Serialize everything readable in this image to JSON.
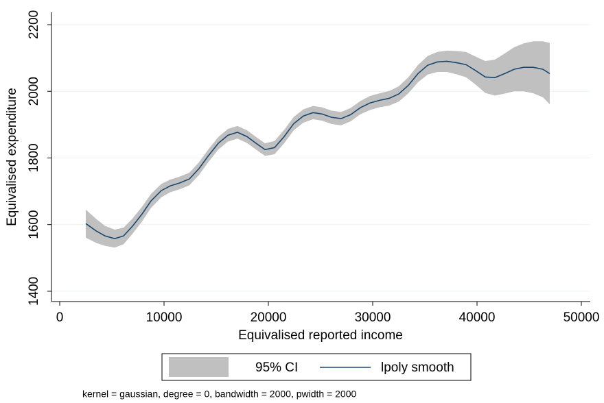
{
  "chart_data": {
    "type": "line",
    "xlabel": "Equivalised reported income",
    "ylabel": "Equivalised expenditure",
    "note": "kernel = gaussian, degree = 0, bandwidth = 2000, pwidth = 2000",
    "x": [
      2500,
      3490,
      4350,
      5270,
      6120,
      6970,
      7900,
      8750,
      9740,
      10590,
      11510,
      12430,
      13350,
      14210,
      15200,
      16120,
      17040,
      17960,
      18820,
      19680,
      20590,
      21510,
      22430,
      23360,
      24280,
      25130,
      26050,
      26970,
      27890,
      28820,
      29740,
      30660,
      31580,
      32500,
      33420,
      34340,
      35260,
      36180,
      37110,
      38030,
      38950,
      39870,
      40790,
      41710,
      42630,
      43550,
      44470,
      45390,
      46320,
      46970
    ],
    "series": [
      {
        "name": "95% CI",
        "color": "#c0c0c0",
        "lower": [
          1561,
          1545,
          1536,
          1531,
          1541,
          1572,
          1610,
          1650,
          1682,
          1697,
          1706,
          1718,
          1749,
          1786,
          1825,
          1849,
          1858,
          1845,
          1825,
          1806,
          1811,
          1844,
          1883,
          1906,
          1916,
          1912,
          1902,
          1898,
          1910,
          1931,
          1944,
          1952,
          1957,
          1969,
          1994,
          2027,
          2050,
          2058,
          2058,
          2051,
          2042,
          2020,
          1995,
          1987,
          1993,
          2000,
          2000,
          1994,
          1982,
          1961
        ],
        "upper": [
          1645,
          1617,
          1596,
          1585,
          1591,
          1618,
          1654,
          1692,
          1722,
          1735,
          1744,
          1756,
          1787,
          1824,
          1863,
          1887,
          1896,
          1883,
          1863,
          1844,
          1851,
          1884,
          1923,
          1946,
          1956,
          1952,
          1942,
          1938,
          1950,
          1971,
          1986,
          1994,
          2001,
          2015,
          2042,
          2079,
          2106,
          2118,
          2122,
          2121,
          2118,
          2104,
          2091,
          2095,
          2113,
          2132,
          2144,
          2150,
          2150,
          2145
        ]
      },
      {
        "name": "lpoly smooth",
        "color": "#1a476f",
        "values": [
          1603,
          1581,
          1566,
          1558,
          1566,
          1595,
          1632,
          1671,
          1702,
          1716,
          1725,
          1737,
          1768,
          1805,
          1844,
          1868,
          1877,
          1864,
          1844,
          1825,
          1831,
          1864,
          1903,
          1926,
          1936,
          1932,
          1922,
          1918,
          1930,
          1951,
          1965,
          1973,
          1979,
          1992,
          2018,
          2053,
          2078,
          2088,
          2090,
          2086,
          2080,
          2062,
          2043,
          2041,
          2053,
          2066,
          2072,
          2072,
          2066,
          2053
        ]
      }
    ],
    "xlim": [
      -789,
      50855
    ],
    "xticks": [
      0,
      10000,
      20000,
      30000,
      40000,
      50000
    ],
    "ylim": [
      1369,
      2237
    ],
    "yticks": [
      1400,
      1600,
      1800,
      2000,
      2200
    ],
    "grid": true,
    "legend": "bottom"
  }
}
